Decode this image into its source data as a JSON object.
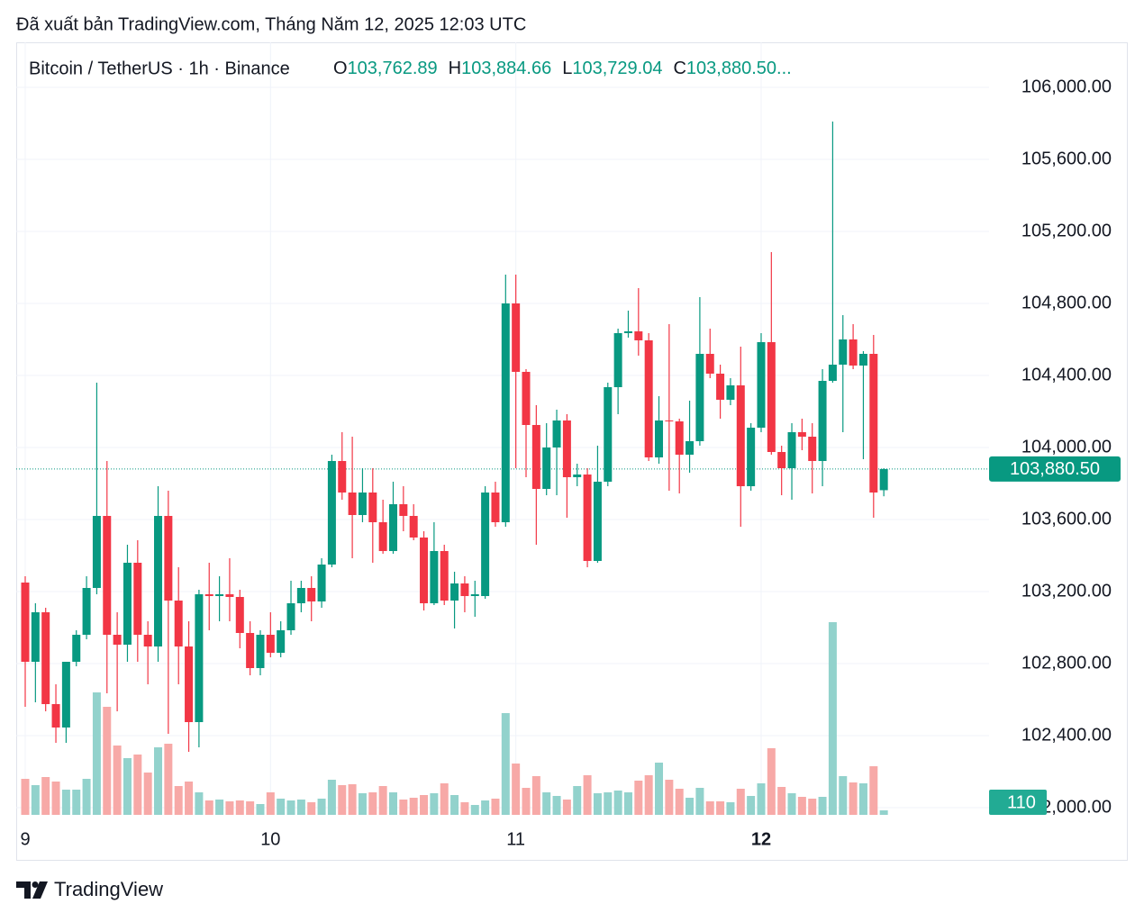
{
  "header": {
    "caption": "Đã xuất bản TradingView.com, Tháng Năm 12, 2025 12:03 UTC"
  },
  "footer": {
    "brand": "TradingView"
  },
  "chart_data": {
    "type": "candlestick",
    "symbol": "Bitcoin / TetherUS · 1h · Binance",
    "ohlc_legend": [
      {
        "key": "O",
        "value": "103,762.89"
      },
      {
        "key": "H",
        "value": "103,884.66"
      },
      {
        "key": "L",
        "value": "103,729.04"
      },
      {
        "key": "C",
        "value": "103,880.50..."
      }
    ],
    "categories": [
      "9",
      null,
      null,
      null,
      null,
      null,
      null,
      null,
      null,
      null,
      null,
      null,
      null,
      null,
      null,
      null,
      null,
      null,
      null,
      null,
      null,
      null,
      null,
      null,
      "10",
      null,
      null,
      null,
      null,
      null,
      null,
      null,
      null,
      null,
      null,
      null,
      null,
      null,
      null,
      null,
      null,
      null,
      null,
      null,
      null,
      null,
      null,
      null,
      "11",
      null,
      null,
      null,
      null,
      null,
      null,
      null,
      null,
      null,
      null,
      null,
      null,
      null,
      null,
      null,
      null,
      null,
      null,
      null,
      null,
      null,
      null,
      null,
      "12",
      null,
      null,
      null,
      null,
      null,
      null,
      null,
      null,
      null,
      null,
      null,
      null
    ],
    "open": [
      103250,
      102810,
      103085,
      102575,
      102445,
      102810,
      102960,
      103220,
      103620,
      102960,
      102905,
      103360,
      102960,
      102895,
      103620,
      103150,
      102895,
      102475,
      103185,
      103175,
      103185,
      103170,
      102970,
      102775,
      102960,
      102860,
      102985,
      103135,
      103220,
      103145,
      103350,
      103925,
      103750,
      103625,
      103750,
      103585,
      103425,
      103685,
      103620,
      103500,
      103135,
      103425,
      103150,
      103245,
      103175,
      103175,
      103750,
      103585,
      104800,
      104420,
      104125,
      103770,
      104000,
      104150,
      103835,
      103850,
      103370,
      103810,
      104335,
      104635,
      104645,
      104595,
      103945,
      104150,
      104145,
      103960,
      104035,
      104520,
      104410,
      104265,
      104345,
      103785,
      104110,
      104585,
      103975,
      103885,
      104085,
      104060,
      103925,
      104370,
      104460,
      104600,
      104455,
      104520,
      103762.89
    ],
    "high": [
      103285,
      103135,
      103110,
      102685,
      102810,
      102985,
      103285,
      104360,
      103925,
      103085,
      103460,
      103485,
      103035,
      103785,
      103760,
      103335,
      103035,
      103210,
      103360,
      103285,
      103385,
      103210,
      103035,
      102985,
      103085,
      103035,
      103260,
      103260,
      103285,
      103385,
      103960,
      104085,
      104060,
      103885,
      103885,
      103710,
      103810,
      103785,
      103685,
      103535,
      103585,
      103460,
      103310,
      103285,
      103260,
      103785,
      103810,
      104960,
      104960,
      104435,
      104235,
      104135,
      104210,
      104185,
      103910,
      103885,
      104010,
      104360,
      104660,
      104760,
      104885,
      104635,
      104285,
      104685,
      104160,
      104260,
      104835,
      104660,
      104460,
      104385,
      104560,
      104135,
      104635,
      105085,
      104010,
      104135,
      104160,
      104135,
      104435,
      105810,
      104735,
      104685,
      104535,
      104625,
      103884.66
    ],
    "low": [
      102560,
      102585,
      102535,
      102360,
      102360,
      102785,
      102935,
      103185,
      102635,
      102535,
      102810,
      102810,
      102685,
      102810,
      102410,
      102685,
      102310,
      102335,
      102985,
      103035,
      103035,
      102885,
      102735,
      102735,
      102835,
      102835,
      102960,
      103085,
      103035,
      103110,
      103335,
      103710,
      103385,
      103585,
      103360,
      103410,
      103410,
      103535,
      103485,
      103095,
      103125,
      103125,
      102995,
      103085,
      103060,
      103160,
      103560,
      103560,
      103885,
      103835,
      103460,
      103735,
      103735,
      103610,
      103785,
      103335,
      103360,
      103785,
      104185,
      104610,
      104510,
      103925,
      103910,
      103760,
      103745,
      103860,
      104010,
      104385,
      104160,
      104235,
      103560,
      103760,
      104085,
      103960,
      103735,
      103710,
      103985,
      103745,
      103785,
      104360,
      104085,
      104435,
      103935,
      103610,
      103729.04
    ],
    "close": [
      102810,
      103085,
      102575,
      102445,
      102810,
      102960,
      103220,
      103620,
      102960,
      102905,
      103360,
      102960,
      102895,
      103620,
      103150,
      102895,
      102475,
      103185,
      103175,
      103185,
      103170,
      102970,
      102775,
      102960,
      102860,
      102985,
      103135,
      103220,
      103145,
      103350,
      103925,
      103750,
      103625,
      103750,
      103585,
      103425,
      103685,
      103620,
      103500,
      103135,
      103425,
      103150,
      103245,
      103175,
      103185,
      103750,
      103585,
      104800,
      104420,
      104125,
      103770,
      104000,
      104150,
      103835,
      103850,
      103370,
      103810,
      104335,
      104635,
      104645,
      104595,
      103945,
      104150,
      104145,
      103960,
      104035,
      104520,
      104410,
      104265,
      104345,
      103785,
      104110,
      104585,
      103975,
      103885,
      104085,
      104060,
      103925,
      104370,
      104460,
      104600,
      104455,
      104520,
      103750,
      103880.5
    ],
    "up_color": "#089981",
    "down_color": "#f23645",
    "volume": {
      "values": [
        880,
        726,
        924,
        814,
        616,
        616,
        880,
        2992,
        2640,
        1694,
        1386,
        1474,
        1034,
        1650,
        1738,
        704,
        814,
        550,
        352,
        374,
        330,
        352,
        330,
        264,
        550,
        396,
        352,
        374,
        308,
        396,
        858,
        726,
        748,
        528,
        550,
        704,
        550,
        374,
        418,
        484,
        528,
        770,
        484,
        308,
        242,
        352,
        396,
        2486,
        1254,
        660,
        946,
        550,
        462,
        374,
        704,
        968,
        528,
        550,
        594,
        550,
        836,
        968,
        1276,
        858,
        638,
        418,
        660,
        330,
        330,
        308,
        638,
        462,
        770,
        1628,
        682,
        528,
        440,
        396,
        440,
        4708,
        946,
        792,
        770,
        1188,
        110
      ],
      "up_color": "#92d2cc",
      "down_color": "#f7a9a7",
      "label_color": "#22ab94"
    },
    "last_price_label": "103,880.50",
    "ylim": [
      101960,
      106250
    ],
    "yticks": [
      {
        "value": 102000,
        "label": "102,000.00"
      },
      {
        "value": 102400,
        "label": "102,400.00"
      },
      {
        "value": 102800,
        "label": "102,800.00"
      },
      {
        "value": 103200,
        "label": "103,200.00"
      },
      {
        "value": 103600,
        "label": "103,600.00"
      },
      {
        "value": 104000,
        "label": "104,000.00"
      },
      {
        "value": 104400,
        "label": "104,400.00"
      },
      {
        "value": 104800,
        "label": "104,800.00"
      },
      {
        "value": 105200,
        "label": "105,200.00"
      },
      {
        "value": 105600,
        "label": "105,600.00"
      },
      {
        "value": 106000,
        "label": "106,000.00"
      }
    ],
    "grid": true
  }
}
